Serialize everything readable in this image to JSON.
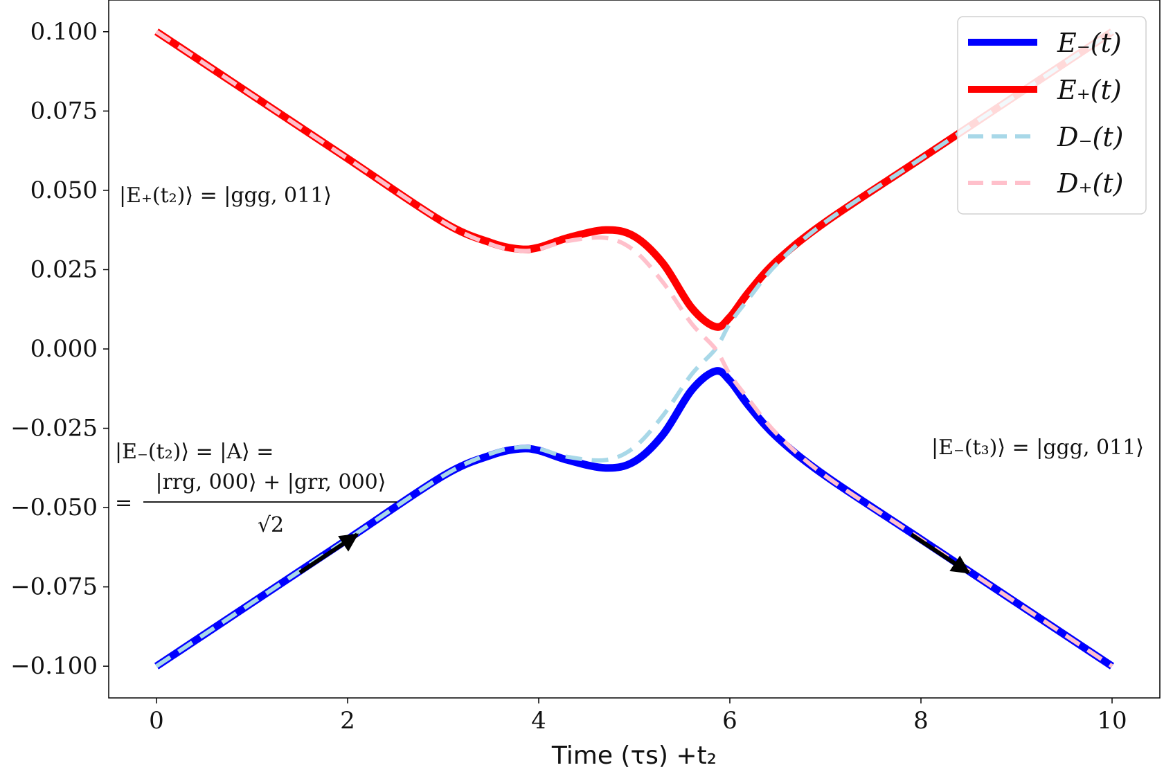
{
  "chart_data": {
    "type": "line",
    "title": "",
    "xlabel": "Time (τs) +t₂",
    "ylabel": "",
    "xlim": [
      -0.5,
      10.5
    ],
    "ylim": [
      -0.11,
      0.11
    ],
    "xticks": [
      0,
      2,
      4,
      6,
      8,
      10
    ],
    "xtick_labels": [
      "0",
      "2",
      "4",
      "6",
      "8",
      "10"
    ],
    "yticks": [
      0.1,
      0.075,
      0.05,
      0.025,
      0.0,
      -0.025,
      -0.05,
      -0.075,
      -0.1
    ],
    "ytick_labels": [
      "0.100",
      "0.075",
      "0.050",
      "0.025",
      "0.000",
      "−0.025",
      "−0.050",
      "−0.075",
      "−0.100"
    ],
    "grid": false,
    "legend_position": "top-right",
    "series": [
      {
        "name": "E₋(t)",
        "color": "#0000ff",
        "style": "solid",
        "x": [
          0,
          1,
          2,
          3,
          3.5,
          3.8,
          4.0,
          4.3,
          4.7,
          5.0,
          5.3,
          5.6,
          5.85,
          6.0,
          6.2,
          6.5,
          7,
          8,
          9,
          10
        ],
        "y": [
          -0.1,
          -0.08,
          -0.06,
          -0.04,
          -0.0335,
          -0.0315,
          -0.032,
          -0.035,
          -0.0375,
          -0.0355,
          -0.027,
          -0.013,
          -0.007,
          -0.01,
          -0.018,
          -0.028,
          -0.04,
          -0.06,
          -0.08,
          -0.1
        ]
      },
      {
        "name": "E₊(t)",
        "color": "#ff0000",
        "style": "solid",
        "x": [
          0,
          1,
          2,
          3,
          3.5,
          3.8,
          4.0,
          4.3,
          4.7,
          5.0,
          5.3,
          5.6,
          5.85,
          6.0,
          6.2,
          6.5,
          7,
          8,
          9,
          10
        ],
        "y": [
          0.1,
          0.08,
          0.06,
          0.04,
          0.0335,
          0.0315,
          0.032,
          0.035,
          0.0375,
          0.0355,
          0.027,
          0.013,
          0.007,
          0.01,
          0.018,
          0.028,
          0.04,
          0.06,
          0.08,
          0.1
        ]
      },
      {
        "name": "D₋(t)",
        "color": "#a8d8e8",
        "style": "dashed",
        "x": [
          0,
          1,
          2,
          3,
          3.5,
          3.8,
          4.0,
          4.3,
          4.7,
          5.0,
          5.3,
          5.6,
          5.85,
          6.0,
          6.2,
          6.5,
          7,
          8,
          9,
          10
        ],
        "y": [
          -0.1,
          -0.08,
          -0.06,
          -0.04,
          -0.033,
          -0.031,
          -0.0315,
          -0.034,
          -0.035,
          -0.031,
          -0.021,
          -0.008,
          0.0,
          0.008,
          0.016,
          0.027,
          0.04,
          0.06,
          0.08,
          0.1
        ]
      },
      {
        "name": "D₊(t)",
        "color": "#ffc0cb",
        "style": "dashed",
        "x": [
          0,
          1,
          2,
          3,
          3.5,
          3.8,
          4.0,
          4.3,
          4.7,
          5.0,
          5.3,
          5.6,
          5.85,
          6.0,
          6.2,
          6.5,
          7,
          8,
          9,
          10
        ],
        "y": [
          0.1,
          0.08,
          0.06,
          0.04,
          0.033,
          0.031,
          0.0315,
          0.034,
          0.035,
          0.031,
          0.021,
          0.008,
          0.0,
          -0.008,
          -0.016,
          -0.027,
          -0.04,
          -0.06,
          -0.08,
          -0.1
        ]
      }
    ],
    "annotations": {
      "eplus_t2": "|E₊(t₂)⟩ = |ggg, 011⟩",
      "eminus_t2_line1": "|E₋(t₂)⟩ = |A⟩ =",
      "eminus_t2_equals": "=",
      "eminus_t2_numerator": "|rrg, 000⟩ + |grr, 000⟩",
      "eminus_t2_denominator": "√2",
      "eminus_t3": "|E₋(t₃)⟩ = |ggg, 011⟩"
    },
    "arrows": [
      {
        "from": [
          1.5,
          -0.0705
        ],
        "to": [
          2.1,
          -0.0585
        ]
      },
      {
        "from": [
          7.9,
          -0.0585
        ],
        "to": [
          8.5,
          -0.0705
        ]
      }
    ]
  }
}
